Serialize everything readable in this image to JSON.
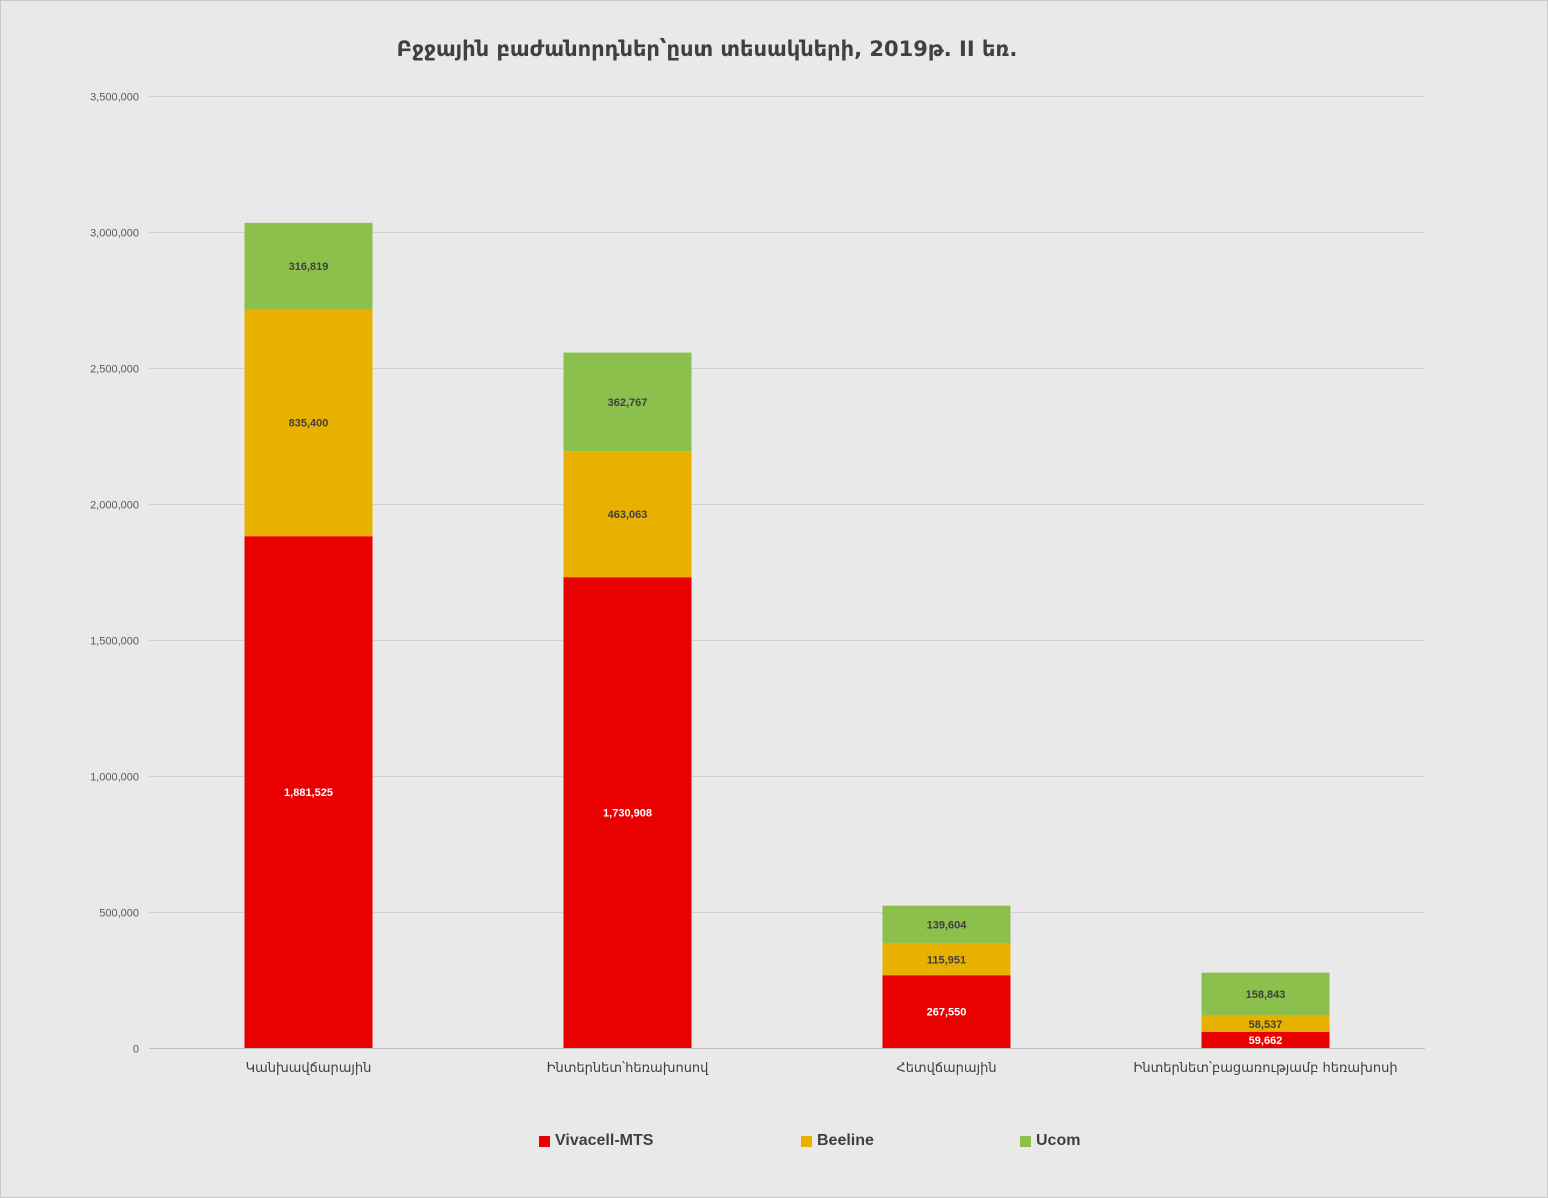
{
  "chart_data": {
    "type": "bar",
    "stacked": true,
    "title": "Բջջային բաժանորդներ՝ըստ տեսակների, 2019թ. II եռ.",
    "xlabel": "",
    "ylabel": "",
    "ylim": [
      0,
      3500000
    ],
    "yticks": [
      0,
      500000,
      1000000,
      1500000,
      2000000,
      2500000,
      3000000,
      3500000
    ],
    "ytick_labels": [
      "0",
      "500,000",
      "1,000,000",
      "1,500,000",
      "2,000,000",
      "2,500,000",
      "3,000,000",
      "3,500,000"
    ],
    "grid": true,
    "legend_position": "bottom",
    "categories": [
      "Կանխավճարային",
      "Ինտերնետ՝հեռախոսով",
      "Հետվճարային",
      "Ինտերնետ՝բացառությամբ հեռախոսի"
    ],
    "series": [
      {
        "name": "Vivacell-MTS",
        "color": "#e90000",
        "label_color": "#ffffff",
        "values": [
          1881525,
          1730908,
          267550,
          59662
        ],
        "labels": [
          "1,881,525",
          "1,730,908",
          "267,550",
          "59,662"
        ]
      },
      {
        "name": "Beeline",
        "color": "#e8b100",
        "label_color": "#404040",
        "values": [
          835400,
          463063,
          115951,
          58537
        ],
        "labels": [
          "835,400",
          "463,063",
          "115,951",
          "58,537"
        ]
      },
      {
        "name": "Ucom",
        "color": "#8bc04d",
        "label_color": "#404040",
        "values": [
          316819,
          362767,
          139604,
          158843
        ],
        "labels": [
          "316,819",
          "362,767",
          "139,604",
          "158,843"
        ]
      }
    ]
  }
}
